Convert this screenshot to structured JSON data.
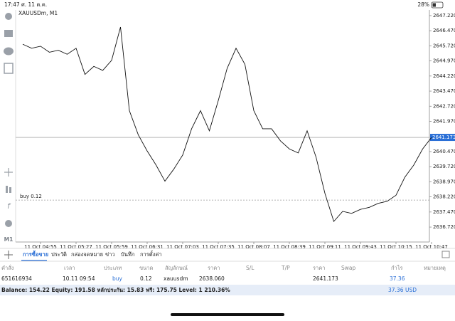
{
  "status_bar": {
    "time": "17:47",
    "date": "ศ. 11 ต.ค.",
    "battery": "28%"
  },
  "toolbar": {
    "timeframe": "M1"
  },
  "chart_data": {
    "type": "line",
    "title": "XAUUSDm, M1",
    "color": "#111111",
    "x": [
      "11 Oct 04:39",
      "11 Oct 04:47",
      "11 Oct 04:55",
      "11 Oct 05:03",
      "11 Oct 05:11",
      "11 Oct 05:19",
      "11 Oct 05:27",
      "11 Oct 05:35",
      "11 Oct 05:43",
      "11 Oct 05:51",
      "11 Oct 05:59",
      "11 Oct 06:07",
      "11 Oct 06:15",
      "11 Oct 06:23",
      "11 Oct 06:31",
      "11 Oct 06:39",
      "11 Oct 06:47",
      "11 Oct 06:55",
      "11 Oct 07:03",
      "11 Oct 07:11",
      "11 Oct 07:19",
      "11 Oct 07:27",
      "11 Oct 07:35",
      "11 Oct 07:43",
      "11 Oct 07:51",
      "11 Oct 07:59",
      "11 Oct 08:07",
      "11 Oct 08:15",
      "11 Oct 08:23",
      "11 Oct 08:31",
      "11 Oct 08:39",
      "11 Oct 08:47",
      "11 Oct 08:55",
      "11 Oct 09:03",
      "11 Oct 09:11",
      "11 Oct 09:19",
      "11 Oct 09:27",
      "11 Oct 09:35",
      "11 Oct 09:43",
      "11 Oct 09:51",
      "11 Oct 09:59",
      "11 Oct 10:07",
      "11 Oct 10:15",
      "11 Oct 10:23",
      "11 Oct 10:31",
      "11 Oct 10:39",
      "11 Oct 10:47"
    ],
    "values": [
      2645.8,
      2645.6,
      2645.7,
      2645.4,
      2645.5,
      2645.3,
      2645.6,
      2644.3,
      2644.7,
      2644.5,
      2645.0,
      2646.65,
      2642.5,
      2641.3,
      2640.5,
      2639.8,
      2639.0,
      2639.6,
      2640.3,
      2641.6,
      2642.5,
      2641.5,
      2643.0,
      2644.6,
      2645.6,
      2644.8,
      2642.5,
      2641.6,
      2641.6,
      2641.0,
      2640.6,
      2640.4,
      2641.5,
      2640.2,
      2638.4,
      2637.0,
      2637.5,
      2637.4,
      2637.6,
      2637.7,
      2637.9,
      2638.0,
      2638.3,
      2639.2,
      2639.8,
      2640.6,
      2641.173
    ],
    "xticks": [
      "11 Oct 04:55",
      "11 Oct 05:27",
      "11 Oct 05:59",
      "11 Oct 06:31",
      "11 Oct 07:03",
      "11 Oct 07:35",
      "11 Oct 08:07",
      "11 Oct 08:39",
      "11 Oct 09:11",
      "11 Oct 09:43",
      "11 Oct 10:15",
      "11 Oct 10:47"
    ],
    "ylim": [
      2635.98,
      2647.5
    ],
    "yticks": [
      {
        "value": 2647.22,
        "label": "2647.220"
      },
      {
        "value": 2646.47,
        "label": "2646.470"
      },
      {
        "value": 2645.72,
        "label": "2645.720"
      },
      {
        "value": 2644.97,
        "label": "2644.970"
      },
      {
        "value": 2644.22,
        "label": "2644.220"
      },
      {
        "value": 2643.47,
        "label": "2643.470"
      },
      {
        "value": 2642.72,
        "label": "2642.720"
      },
      {
        "value": 2641.97,
        "label": "2641.970"
      },
      {
        "value": 2640.47,
        "label": "2640.470"
      },
      {
        "value": 2639.72,
        "label": "2639.720"
      },
      {
        "value": 2638.97,
        "label": "2638.970"
      },
      {
        "value": 2638.22,
        "label": "2638.220"
      },
      {
        "value": 2637.47,
        "label": "2637.470"
      },
      {
        "value": 2636.72,
        "label": "2636.720"
      }
    ],
    "current_price": 2641.173,
    "position_line": {
      "value": 2638.06,
      "label": "buy 0.12"
    }
  },
  "tabs": [
    "การซื้อขาย",
    "ประวัติ",
    "กล่องจดหมาย",
    "ข่าว",
    "บันทึก",
    "การตั้งค่า"
  ],
  "table": {
    "headers": [
      "คำสั่ง",
      "เวลา",
      "ประเภท",
      "ขนาด",
      "สัญลักษณ์",
      "ราคา",
      "S/L",
      "T/P",
      "ราคา",
      "Swap",
      "กำไร",
      "หมายเหตุ"
    ],
    "rows": [
      {
        "order": "651616934",
        "time": "10.11 09:54",
        "type": "buy",
        "size": "0.12",
        "symbol": "xauusdm",
        "open_price": "2638.060",
        "price": "2641.173",
        "profit": "37.36"
      }
    ]
  },
  "balance": {
    "text": "Balance: 154.22 Equity: 191.58 หลักประกัน: 15.83 ฟรี: 175.75 Level: 1 210.36%",
    "profit": "37.36",
    "currency": "USD"
  }
}
